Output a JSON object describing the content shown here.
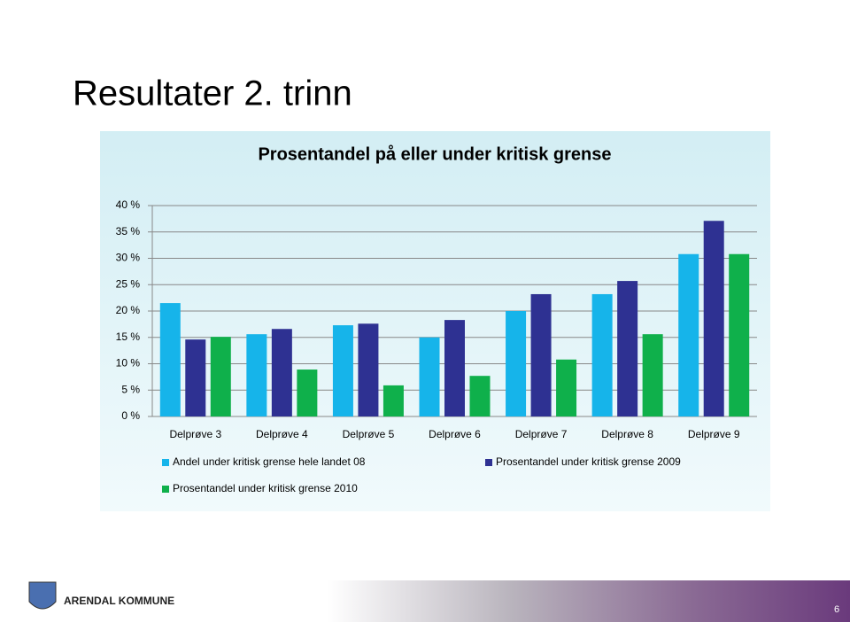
{
  "slide_title": "Resultater 2. trinn",
  "footer": {
    "organization": "ARENDAL KOMMUNE",
    "page_number": "6"
  },
  "chart_data": {
    "type": "bar",
    "title": "Prosentandel på eller under kritisk grense",
    "categories": [
      "Delprøve 3",
      "Delprøve 4",
      "Delprøve 5",
      "Delprøve 6",
      "Delprøve 7",
      "Delprøve 8",
      "Delprøve 9"
    ],
    "series": [
      {
        "name": "Andel under kritisk grense hele landet 08",
        "color": "#16b4ea",
        "values": [
          21.5,
          15.6,
          17.3,
          15.0,
          20.0,
          23.2,
          30.8
        ]
      },
      {
        "name": "Prosentandel under kritisk grense 2009",
        "color": "#2e3192",
        "values": [
          14.6,
          16.6,
          17.6,
          18.3,
          23.2,
          25.7,
          37.1
        ]
      },
      {
        "name": "Prosentandel under kritisk grense 2010",
        "color": "#0fb04b",
        "values": [
          15.1,
          8.9,
          5.9,
          7.7,
          10.8,
          15.6,
          30.8
        ]
      }
    ],
    "ylim": [
      0,
      40
    ],
    "yticks": [
      {
        "value": 0,
        "label": "0 %"
      },
      {
        "value": 5,
        "label": "5 %"
      },
      {
        "value": 10,
        "label": "10 %"
      },
      {
        "value": 15,
        "label": "15 %"
      },
      {
        "value": 20,
        "label": "20 %"
      },
      {
        "value": 25,
        "label": "25 %"
      },
      {
        "value": 30,
        "label": "30 %"
      },
      {
        "value": 35,
        "label": "35 %"
      },
      {
        "value": 40,
        "label": "40 %"
      }
    ],
    "grid": true,
    "legend": "bottom"
  }
}
